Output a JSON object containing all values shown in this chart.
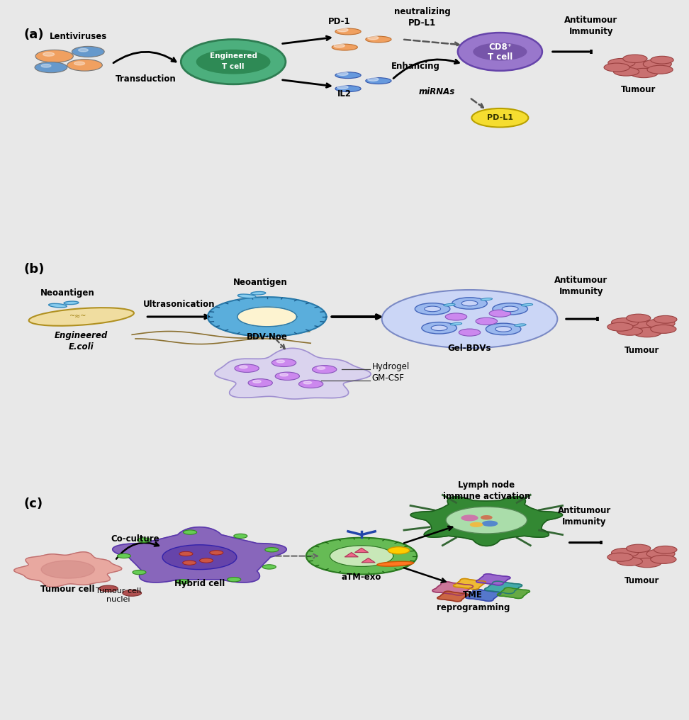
{
  "panel_a_bg": "#dde8f5",
  "panel_b_bg": "#fdf3d0",
  "panel_c_bg": "#f5e6d5",
  "panel_a_label": "(a)",
  "panel_b_label": "(b)",
  "panel_c_label": "(c)",
  "fig_bg": "#f0f0f0",
  "text_color": "#1a1a1a",
  "panel_a": {
    "lentivirus_label": "Lentiviruses",
    "transduction_label": "Transduction",
    "pd1_label": "PD-1",
    "neutralizing_label": "neutralizing\nPD-L1",
    "il2_label": "IL2",
    "mirna_label": "miRNAs",
    "pdl1_label": "PD-L1",
    "enhancing_label": "Enhancing",
    "cd8_label": "CD8⁺\nT cell",
    "antitumour_label": "Antitumour\nImmunity",
    "tumour_label": "Tumour"
  },
  "panel_b": {
    "neoantigen_label1": "Neoantigen",
    "ecoli_label": "Engineered\nE.coli",
    "ultrasonication_label": "Ultrasonication",
    "neoantigen_label2": "Neoantigen",
    "bdv_label": "BDV-Noe",
    "hydrogel_label": "Hydrogel",
    "gmcsf_label": "GM-CSF",
    "gelbdvs_label": "Gel-BDVs",
    "antitumour_label": "Antitumour\nImmunity",
    "tumour_label": "Tumour"
  },
  "panel_c": {
    "tumour_cell_label": "Tumour cell",
    "coculture_label": "Co-culture",
    "nuclei_label": "Tumour cell\nnuclei",
    "hybrid_label": "Hybrid cell",
    "atm_label": "aTM-exo",
    "lymph_label": "Lymph node\nimmune activation",
    "tme_label": "TME\nreprogramming",
    "antitumour_label": "Antitumour\nImmunity",
    "tumour_label": "Tumour"
  }
}
